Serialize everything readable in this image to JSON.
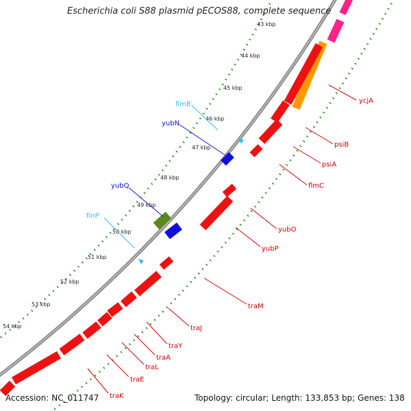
{
  "title": "Escherichia coli S88 plasmid pECOS88, complete sequence",
  "footer": {
    "accession": "Accession: NC_011747",
    "summary": "Topology: circular; Length: 133,853 bp; Genes: 138"
  },
  "kbp_ticks": [
    "43 kbp",
    "44 kbp",
    "45 kbp",
    "46 kbp",
    "47 kbp",
    "48 kbp",
    "49 kbp",
    "50 kbp",
    "51 kbp",
    "52 kbp",
    "53 kbp",
    "54 kbp"
  ],
  "inner_labels": [
    {
      "text": "flmB",
      "color": "#33bbee"
    },
    {
      "text": "yubN",
      "color": "#1010cc"
    },
    {
      "text": "yubQ",
      "color": "#1010cc"
    },
    {
      "text": "finP",
      "color": "#33bbee"
    }
  ],
  "outer_labels": [
    {
      "text": "ycjA",
      "color": "#cc0000"
    },
    {
      "text": "psiB",
      "color": "#cc0000"
    },
    {
      "text": "psiA",
      "color": "#cc0000"
    },
    {
      "text": "flmC",
      "color": "#cc0000"
    },
    {
      "text": "yubO",
      "color": "#cc0000"
    },
    {
      "text": "yubP",
      "color": "#cc0000"
    },
    {
      "text": "traM",
      "color": "#cc0000"
    },
    {
      "text": "traJ",
      "color": "#cc0000"
    },
    {
      "text": "traY",
      "color": "#cc0000"
    },
    {
      "text": "traA",
      "color": "#cc0000"
    },
    {
      "text": "traL",
      "color": "#cc0000"
    },
    {
      "text": "traE",
      "color": "#cc0000"
    },
    {
      "text": "traK",
      "color": "#cc0000"
    }
  ],
  "colors": {
    "cds": "#ee1111",
    "cds_dark": "#aa0000",
    "backbone": "#8a8a8a",
    "tick_dotted": "#228822",
    "tick_major": "#1a6a1a",
    "orange": "#ff9900",
    "pink": "#ff2288",
    "blue": "#1010dd",
    "olive": "#5a8a1a",
    "cyan": "#33bbee"
  }
}
